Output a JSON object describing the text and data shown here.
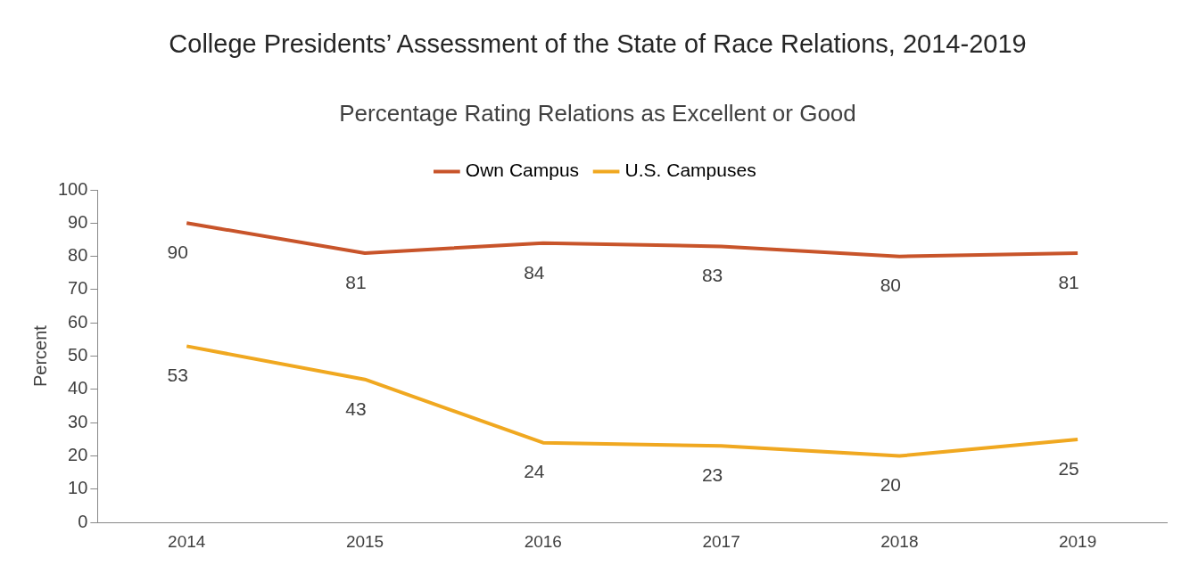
{
  "chart_data": {
    "type": "line",
    "title": "College Presidents’ Assessment of the State of Race Relations, 2014-2019",
    "subtitle": "Percentage Rating Relations as Excellent or Good",
    "ylabel": "Percent",
    "categories": [
      "2014",
      "2015",
      "2016",
      "2017",
      "2018",
      "2019"
    ],
    "series": [
      {
        "name": "Own Campus",
        "color": "#c8542a",
        "values": [
          90,
          81,
          84,
          83,
          80,
          81
        ]
      },
      {
        "name": "U.S. Campuses",
        "color": "#f0a820",
        "values": [
          53,
          43,
          24,
          23,
          20,
          25
        ]
      }
    ],
    "ylim": [
      0,
      100
    ],
    "yticks": [
      0,
      10,
      20,
      30,
      40,
      50,
      60,
      70,
      80,
      90,
      100
    ],
    "grid": false,
    "legend": "top",
    "marker": "none",
    "data_labels": true
  }
}
